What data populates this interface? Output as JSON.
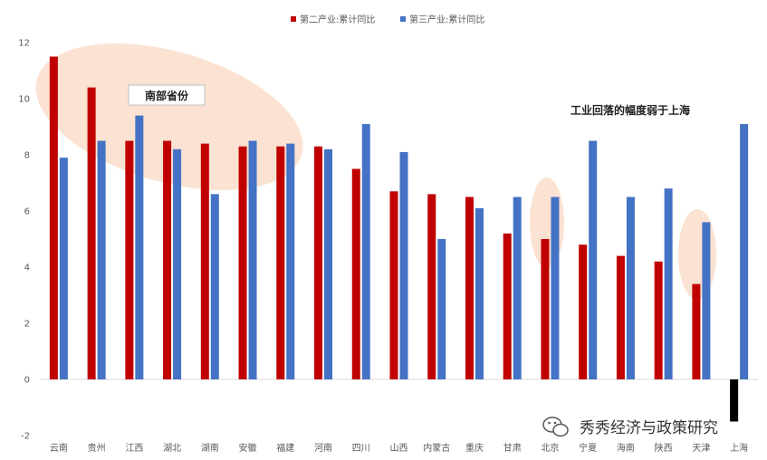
{
  "chart_data": {
    "type": "bar",
    "categories": [
      "云南",
      "贵州",
      "江西",
      "湖北",
      "湖南",
      "安徽",
      "福建",
      "河南",
      "四川",
      "山西",
      "内蒙古",
      "重庆",
      "甘肃",
      "北京",
      "宁夏",
      "海南",
      "陕西",
      "天津",
      "上海"
    ],
    "series": [
      {
        "name": "第二产业:累计同比",
        "color": "#c00000",
        "values": [
          11.5,
          10.4,
          8.5,
          8.5,
          8.4,
          8.3,
          8.3,
          8.3,
          7.5,
          6.7,
          6.6,
          6.5,
          5.2,
          5.0,
          4.8,
          4.4,
          4.2,
          3.4,
          -1.5
        ]
      },
      {
        "name": "第三产业:累计同比",
        "color": "#4472c4",
        "values": [
          7.9,
          8.5,
          9.4,
          8.2,
          6.6,
          8.5,
          8.4,
          8.2,
          9.1,
          8.1,
          5.0,
          6.1,
          6.5,
          6.5,
          8.5,
          6.5,
          6.8,
          5.6,
          9.1
        ]
      }
    ],
    "ylim": [
      -2,
      12
    ],
    "yticks": [
      -2,
      0,
      2,
      4,
      6,
      8,
      10,
      12
    ],
    "legend_position": "top-center",
    "grid": false,
    "highlight_colors": {
      "negative_bar": "#000000",
      "ellipse": "#f4b183"
    },
    "annotations": {
      "south_label": "南部省份",
      "note": "工业回落的幅度弱于上海"
    },
    "watermark": "秀秀经济与政策研究"
  }
}
